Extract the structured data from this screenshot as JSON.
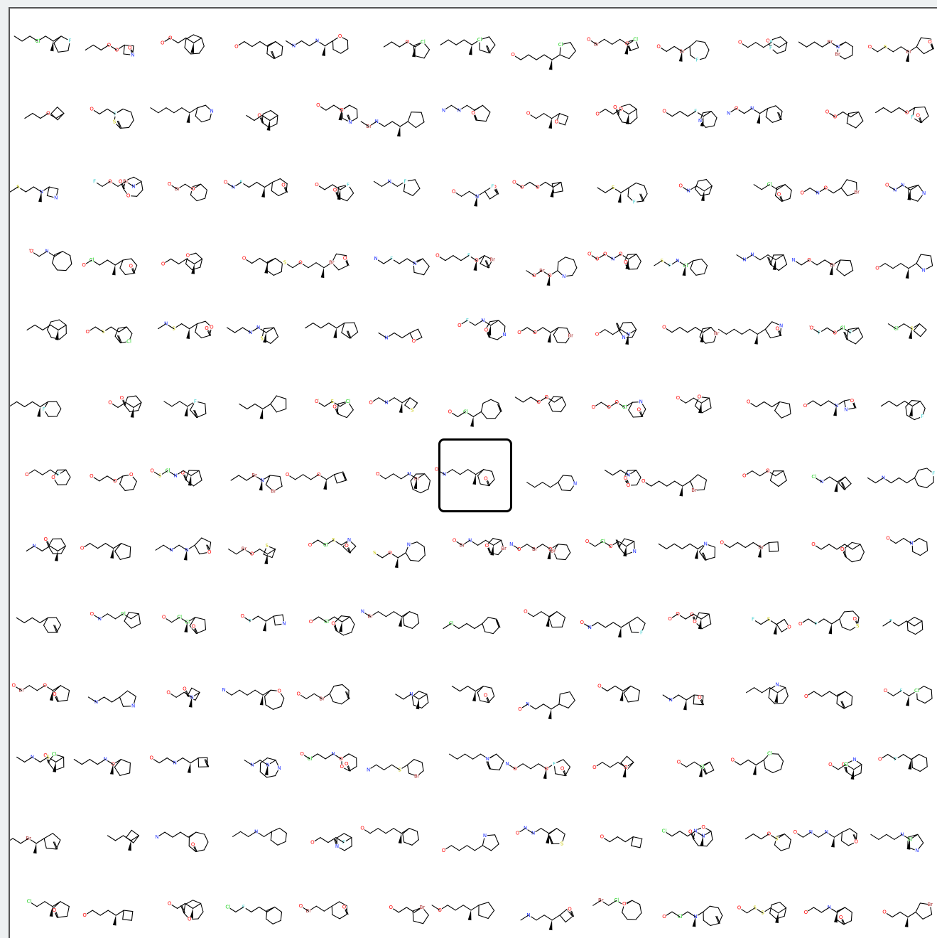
{
  "grid": {
    "rows": 13,
    "cols": 13,
    "selected": {
      "row": 6,
      "col": 6
    }
  },
  "colors": {
    "O": "#ff0d0d",
    "N": "#2233ff",
    "S": "#c8c800",
    "Cl": "#1fd01f",
    "F": "#3fd0d0",
    "Br": "#a62929"
  }
}
